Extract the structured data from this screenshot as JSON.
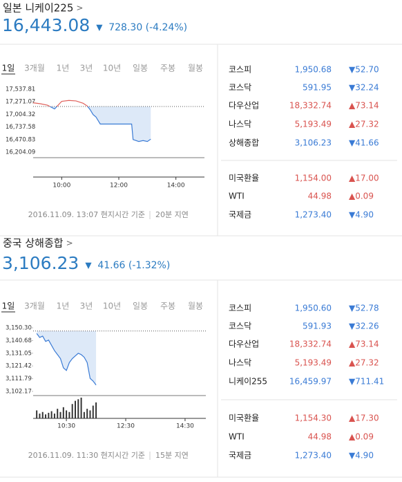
{
  "panels": [
    {
      "title": "일본 니케이225",
      "chevron": ">",
      "price": "16,443.08",
      "arrow": "▼",
      "change": "728.30 (-4.24%)",
      "tabs": [
        "1일",
        "3개월",
        "1년",
        "3년",
        "10년",
        "일봉",
        "주봉",
        "월봉"
      ],
      "chart": {
        "type": "line",
        "x": [
          9.0,
          9.25,
          9.5,
          9.75,
          10.0,
          10.25,
          10.5,
          10.75,
          10.9,
          11.0,
          11.1,
          11.2,
          11.35,
          11.8,
          12.2,
          12.45,
          12.5,
          12.7,
          12.85,
          13.0,
          13.12
        ],
        "values": [
          17250,
          17230,
          17200,
          17120,
          17280,
          17300,
          17290,
          17240,
          17180,
          17100,
          17000,
          16950,
          16800,
          16800,
          16800,
          16800,
          16470,
          16430,
          16450,
          16430,
          16480
        ],
        "xlim": [
          9,
          15
        ],
        "ylim": [
          16087,
          17699
        ],
        "yticks": [
          {
            "value": 17537.81,
            "label": "17,537.81"
          },
          {
            "value": 17271.07,
            "label": "17,271.07"
          },
          {
            "value": 17004.32,
            "label": "17,004.32"
          },
          {
            "value": 16737.58,
            "label": "16,737.58"
          },
          {
            "value": 16470.83,
            "label": "16,470.83"
          },
          {
            "value": 16204.09,
            "label": "16,204.09"
          }
        ],
        "xticks": [
          {
            "value": 10,
            "label": "10:00"
          },
          {
            "value": 12,
            "label": "12:00"
          },
          {
            "value": 14,
            "label": "14:00"
          }
        ],
        "reference": 17171.38,
        "up_color": "#e0605a",
        "down_color": "#3a7bd5",
        "fill_color": "#dde9f8"
      },
      "note": "2016.11.09. 13:07 현지시간 기준",
      "delay": "20분 지연",
      "groups": [
        [
          {
            "name": "코스피",
            "value": "1,950.68",
            "change": "▼52.70",
            "color": "#3a7bd5"
          },
          {
            "name": "코스닥",
            "value": "591.95",
            "change": "▼32.24",
            "color": "#3a7bd5"
          },
          {
            "name": "다우산업",
            "value": "18,332.74",
            "change": "▲73.14",
            "color": "#d9534f"
          },
          {
            "name": "나스닥",
            "value": "5,193.49",
            "change": "▲27.32",
            "color": "#d9534f"
          },
          {
            "name": "상해종합",
            "value": "3,106.23",
            "change": "▼41.66",
            "color": "#3a7bd5"
          }
        ],
        [
          {
            "name": "미국환율",
            "value": "1,154.00",
            "change": "▲17.00",
            "color": "#d9534f"
          },
          {
            "name": "WTI",
            "value": "44.98",
            "change": "▲0.09",
            "color": "#d9534f"
          },
          {
            "name": "국제금",
            "value": "1,273.40",
            "change": "▼4.90",
            "color": "#3a7bd5"
          }
        ]
      ]
    },
    {
      "title": "중국 상해종합",
      "chevron": ">",
      "price": "3,106.23",
      "arrow": "▼",
      "change": "41.66 (-1.32%)",
      "tabs": [
        "1일",
        "3개월",
        "1년",
        "3년",
        "10년",
        "일봉",
        "주봉",
        "월봉"
      ],
      "chart": {
        "type": "line",
        "x": [
          9.5,
          9.6,
          9.7,
          9.8,
          9.9,
          10.0,
          10.1,
          10.2,
          10.3,
          10.4,
          10.5,
          10.6,
          10.7,
          10.8,
          10.9,
          11.0,
          11.1,
          11.2,
          11.3,
          11.4,
          11.5
        ],
        "values": [
          3146,
          3143,
          3144,
          3140,
          3141,
          3137,
          3133,
          3130,
          3127,
          3120,
          3118,
          3124,
          3127,
          3129,
          3131,
          3130,
          3128,
          3124,
          3112,
          3110,
          3107
        ],
        "volume": [
          10,
          6,
          8,
          5,
          7,
          9,
          6,
          12,
          8,
          14,
          10,
          8,
          18,
          22,
          24,
          26,
          8,
          12,
          10,
          16,
          20
        ],
        "xlim": [
          9.38,
          15.2
        ],
        "ylim": [
          3099,
          3154.5
        ],
        "yticks": [
          {
            "value": 3150.3,
            "label": "3,150.30"
          },
          {
            "value": 3140.68,
            "label": "3,140.68"
          },
          {
            "value": 3131.05,
            "label": "3,131.05"
          },
          {
            "value": 3121.42,
            "label": "3,121.42"
          },
          {
            "value": 3111.79,
            "label": "3,111.79"
          },
          {
            "value": 3102.17,
            "label": "3,102.17"
          }
        ],
        "xticks": [
          {
            "value": 10.5,
            "label": "10:30"
          },
          {
            "value": 12.5,
            "label": "12:30"
          },
          {
            "value": 14.5,
            "label": "14:30"
          }
        ],
        "reference": 3147.89,
        "up_color": "#e0605a",
        "down_color": "#3a7bd5",
        "fill_color": "#dde9f8",
        "volume_color": "#333333"
      },
      "note": "2016.11.09. 11:30 현지시간 기준",
      "delay": "15분 지연",
      "groups": [
        [
          {
            "name": "코스피",
            "value": "1,950.60",
            "change": "▼52.78",
            "color": "#3a7bd5"
          },
          {
            "name": "코스닥",
            "value": "591.93",
            "change": "▼32.26",
            "color": "#3a7bd5"
          },
          {
            "name": "다우산업",
            "value": "18,332.74",
            "change": "▲73.14",
            "color": "#d9534f"
          },
          {
            "name": "나스닥",
            "value": "5,193.49",
            "change": "▲27.32",
            "color": "#d9534f"
          },
          {
            "name": "니케이255",
            "value": "16,459.97",
            "change": "▼711.41",
            "color": "#3a7bd5"
          }
        ],
        [
          {
            "name": "미국환율",
            "value": "1,154.30",
            "change": "▲17.30",
            "color": "#d9534f"
          },
          {
            "name": "WTI",
            "value": "44.98",
            "change": "▲0.09",
            "color": "#d9534f"
          },
          {
            "name": "국제금",
            "value": "1,273.40",
            "change": "▼4.90",
            "color": "#3a7bd5"
          }
        ]
      ]
    }
  ]
}
